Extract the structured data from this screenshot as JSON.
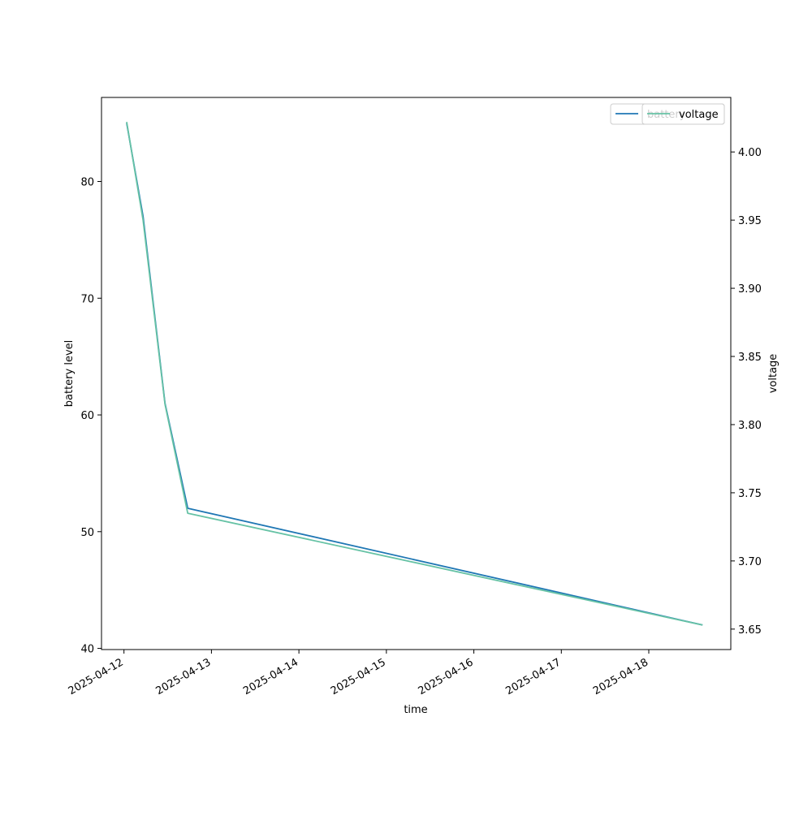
{
  "chart_data": {
    "type": "line",
    "title": "",
    "xlabel": "time",
    "ylabel": "battery level",
    "y2label": "voltage",
    "x_tick_labels": [
      "2025-04-12",
      "2025-04-13",
      "2025-04-14",
      "2025-04-15",
      "2025-04-16",
      "2025-04-17",
      "2025-04-18"
    ],
    "xlim": [
      "2025-04-11 17:50",
      "2025-04-18 22:30"
    ],
    "ylim": [
      39.9,
      87.2
    ],
    "y_ticks": [
      40,
      50,
      60,
      70,
      80
    ],
    "y2lim": [
      3.635,
      4.04
    ],
    "y2_ticks": [
      "3.65",
      "3.70",
      "3.75",
      "3.80",
      "3.85",
      "3.90",
      "3.95",
      "4.00"
    ],
    "grid": false,
    "legend_placement": "top-right",
    "series": [
      {
        "name": "battery",
        "axis": "left",
        "color": "#1f77b4",
        "x": [
          "2025-04-12 00:45",
          "2025-04-12 05:15",
          "2025-04-12 11:15",
          "2025-04-12 17:30",
          "2025-04-18 14:45"
        ],
        "values": [
          85,
          77,
          61,
          52,
          42
        ]
      },
      {
        "name": "voltage",
        "axis": "right",
        "color": "#66c2a5",
        "x": [
          "2025-04-12 00:45",
          "2025-04-12 05:15",
          "2025-04-12 11:15",
          "2025-04-12 17:30",
          "2025-04-18 14:45"
        ],
        "values": [
          4.022,
          3.95,
          3.815,
          3.735,
          3.653
        ]
      }
    ]
  }
}
